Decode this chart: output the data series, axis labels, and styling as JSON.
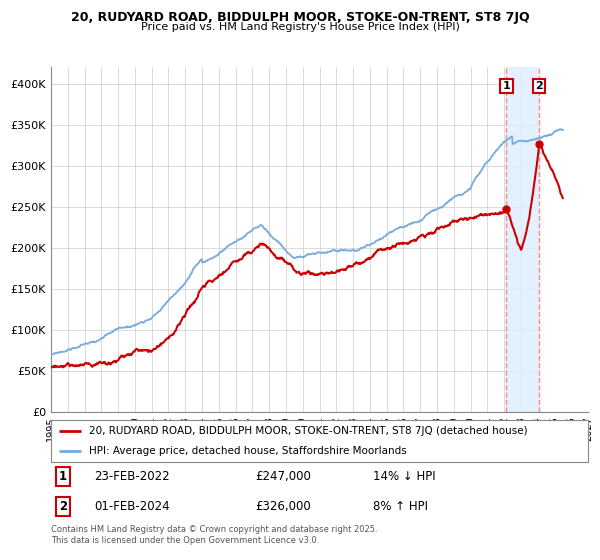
{
  "title_line1": "20, RUDYARD ROAD, BIDDULPH MOOR, STOKE-ON-TRENT, ST8 7JQ",
  "title_line2": "Price paid vs. HM Land Registry's House Price Index (HPI)",
  "legend_line1": "20, RUDYARD ROAD, BIDDULPH MOOR, STOKE-ON-TRENT, ST8 7JQ (detached house)",
  "legend_line2": "HPI: Average price, detached house, Staffordshire Moorlands",
  "footer": "Contains HM Land Registry data © Crown copyright and database right 2025.\nThis data is licensed under the Open Government Licence v3.0.",
  "sale1_date_label": "23-FEB-2022",
  "sale1_price_label": "£247,000",
  "sale1_hpi_label": "14% ↓ HPI",
  "sale2_date_label": "01-FEB-2024",
  "sale2_price_label": "£326,000",
  "sale2_hpi_label": "8% ↑ HPI",
  "hpi_color": "#77aadd",
  "price_color": "#cc0000",
  "sale_dot_color": "#cc0000",
  "dashed_line_color": "#ff8888",
  "shade_color": "#ddeeff",
  "hatch_color": "#bbbbbb",
  "background_color": "#ffffff",
  "grid_color": "#cccccc",
  "sale1_x": 2022.14,
  "sale1_y": 247000,
  "sale2_x": 2024.08,
  "sale2_y": 326000,
  "xmin": 1995,
  "xmax": 2027,
  "ymin": 0,
  "ymax": 420000,
  "yticks": [
    0,
    50000,
    100000,
    150000,
    200000,
    250000,
    300000,
    350000,
    400000
  ],
  "ytick_labels": [
    "£0",
    "£50K",
    "£100K",
    "£150K",
    "£200K",
    "£250K",
    "£300K",
    "£350K",
    "£400K"
  ]
}
